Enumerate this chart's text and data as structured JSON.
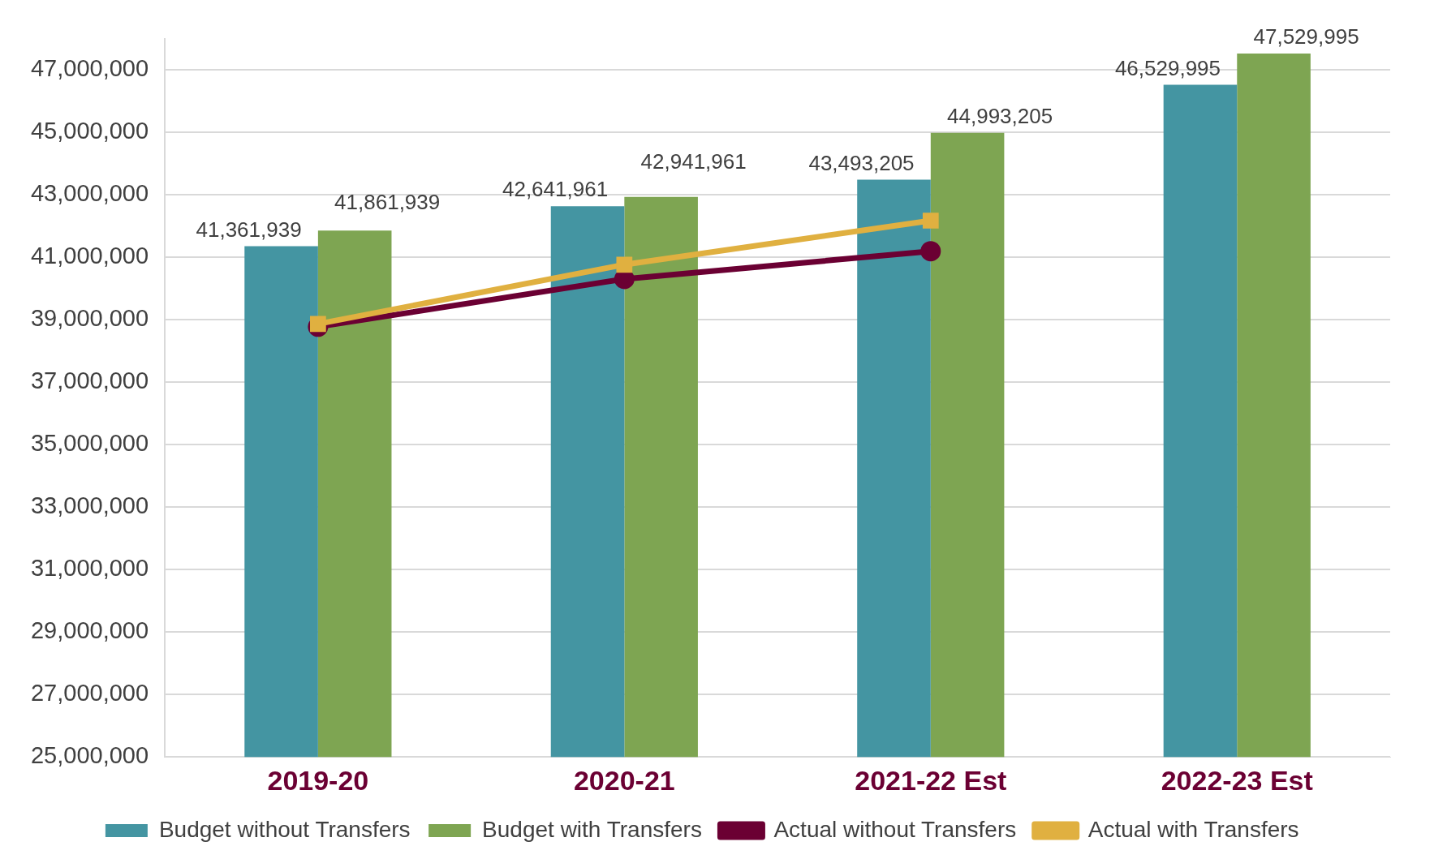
{
  "chart_data": {
    "type": "bar",
    "categories": [
      "2019-20",
      "2020-21",
      "2021-22 Est",
      "2022-23 Est"
    ],
    "series": [
      {
        "name": "Budget without Transfers",
        "color": "#4495a2",
        "values": [
          41361939,
          42641961,
          43493205,
          46529995
        ],
        "value_labels": [
          "41,361,939",
          "42,641,961",
          "43,493,205",
          "46,529,995"
        ]
      },
      {
        "name": "Budget with Transfers",
        "color": "#7ea552",
        "values": [
          41861939,
          42941961,
          44993205,
          47529995
        ],
        "value_labels": [
          "41,861,939",
          "42,941,961",
          "44,993,205",
          "47,529,995"
        ]
      },
      {
        "name": "Actual without Transfers",
        "type": "line",
        "color": "#6b0033",
        "marker": "circle",
        "values": [
          38780000,
          40310000,
          41200000,
          null
        ]
      },
      {
        "name": "Actual with Transfers",
        "type": "line",
        "color": "#e0b040",
        "marker": "square",
        "values": [
          38870000,
          40770000,
          42180000,
          null
        ]
      }
    ],
    "ylim": [
      25000000,
      48000000
    ],
    "yticks": [
      {
        "value": 25000000,
        "label": "25,000,000"
      },
      {
        "value": 27000000,
        "label": "27,000,000"
      },
      {
        "value": 29000000,
        "label": "29,000,000"
      },
      {
        "value": 31000000,
        "label": "31,000,000"
      },
      {
        "value": 33000000,
        "label": "33,000,000"
      },
      {
        "value": 35000000,
        "label": "35,000,000"
      },
      {
        "value": 37000000,
        "label": "37,000,000"
      },
      {
        "value": 39000000,
        "label": "39,000,000"
      },
      {
        "value": 41000000,
        "label": "41,000,000"
      },
      {
        "value": 43000000,
        "label": "43,000,000"
      },
      {
        "value": 45000000,
        "label": "45,000,000"
      },
      {
        "value": 47000000,
        "label": "47,000,000"
      }
    ],
    "grid": "y",
    "legend": "bottom"
  }
}
